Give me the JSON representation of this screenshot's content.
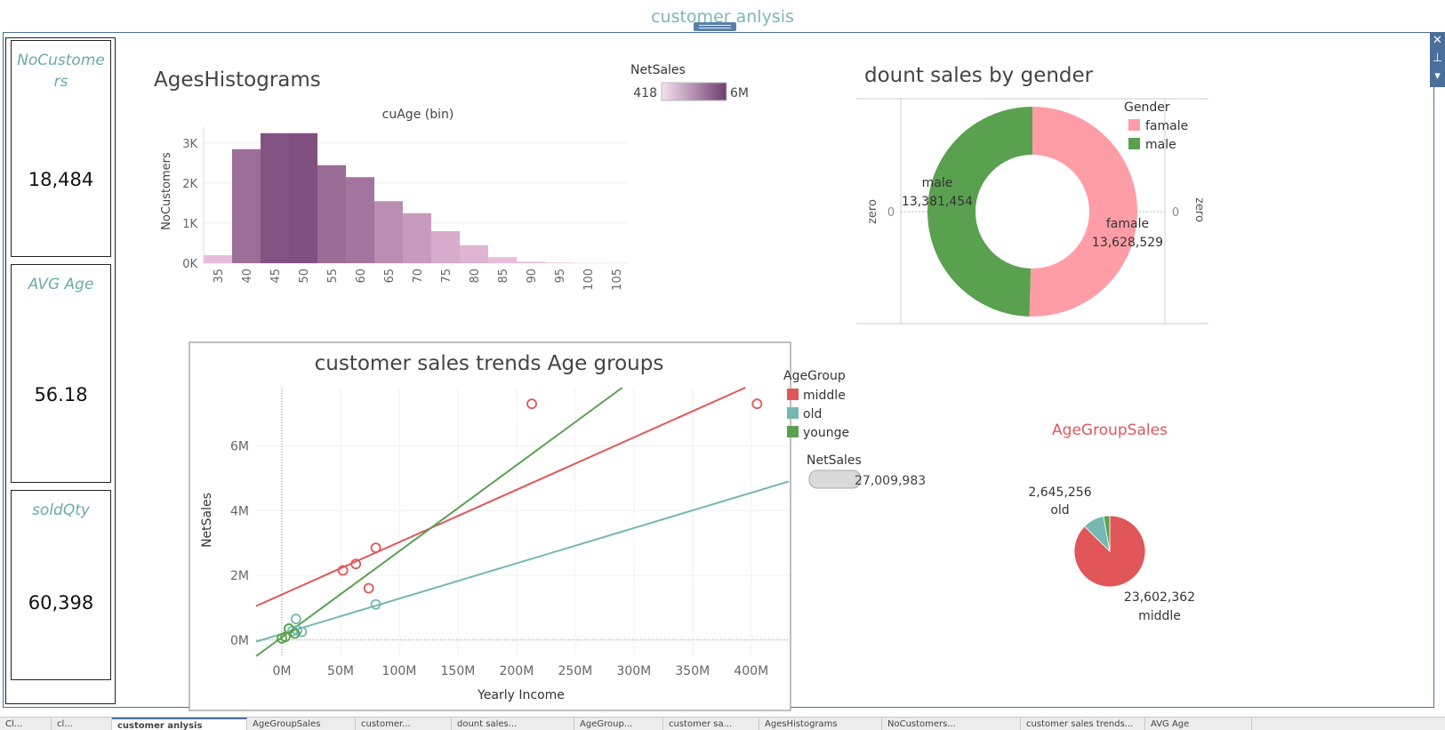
{
  "dashboard": {
    "title": "customer anlysis"
  },
  "kpis": [
    {
      "title": "NoCustomers",
      "value": "18,484"
    },
    {
      "title": "AVG Age",
      "value": "56.18"
    },
    {
      "title": "soldQty",
      "value": "60,398"
    }
  ],
  "colors": {
    "accent": "#4a6f9a",
    "kpi_title": "#6aaba7",
    "hist_dark": "#7a4a7a",
    "hist_light": "#eec3df",
    "female": "#ff9da6",
    "male": "#59a14f",
    "middle": "#e15759",
    "old": "#76b7b2",
    "younge": "#59a14f"
  },
  "histogram": {
    "title": "AgesHistograms",
    "legend_title": "NetSales",
    "legend_min": "418",
    "legend_max": "6M",
    "chart_data": {
      "type": "bar",
      "title": "cuAge (bin)",
      "ylabel": "NoCustomers",
      "categories": [
        "35",
        "40",
        "45",
        "50",
        "55",
        "60",
        "65",
        "70",
        "75",
        "80",
        "85",
        "90",
        "95",
        "100",
        "105"
      ],
      "values": [
        200,
        2850,
        3250,
        3250,
        2450,
        2150,
        1550,
        1250,
        800,
        450,
        150,
        40,
        15,
        5,
        2
      ],
      "color_values": [
        0.05,
        0.7,
        0.92,
        0.95,
        0.72,
        0.65,
        0.45,
        0.33,
        0.2,
        0.12,
        0.05,
        0.02,
        0.01,
        0.0,
        0.0
      ],
      "yticks": [
        "0K",
        "1K",
        "2K",
        "3K"
      ],
      "ylim": [
        0,
        3400
      ],
      "grid": true
    }
  },
  "donut": {
    "title": "dount sales by gender",
    "legend_title": "Gender",
    "axis_label": "zero",
    "axis_zero": "0",
    "chart_data": {
      "type": "pie",
      "labels": [
        "famale",
        "male"
      ],
      "values": [
        13628529,
        13381454
      ],
      "value_labels": [
        "13,628,529",
        "13,381,454"
      ]
    }
  },
  "scatter": {
    "title": "customer sales trends Age groups",
    "legend_title": "AgeGroup",
    "size_legend_title": "NetSales",
    "size_legend_value": "27,009,983",
    "chart_data": {
      "type": "scatter",
      "xlabel": "Yearly Income",
      "ylabel": "NetSales",
      "xticks": [
        "0M",
        "50M",
        "100M",
        "150M",
        "200M",
        "250M",
        "300M",
        "350M",
        "400M"
      ],
      "yticks": [
        "0M",
        "2M",
        "4M",
        "6M"
      ],
      "xlim": [
        -22,
        432
      ],
      "ylim": [
        -0.5,
        7.8
      ],
      "series": [
        {
          "name": "middle",
          "points": [
            [
              52,
              2.15
            ],
            [
              63,
              2.35
            ],
            [
              74,
              1.6
            ],
            [
              80,
              2.85
            ],
            [
              213,
              7.3
            ],
            [
              405,
              7.3
            ]
          ],
          "trend": [
            [
              -22,
              1.05
            ],
            [
              395,
              7.8
            ]
          ]
        },
        {
          "name": "old",
          "points": [
            [
              12,
              0.65
            ],
            [
              80,
              1.1
            ],
            [
              9,
              0.28
            ],
            [
              13,
              0.3
            ],
            [
              17,
              0.25
            ],
            [
              6,
              0.35
            ]
          ],
          "trend": [
            [
              -22,
              -0.05
            ],
            [
              432,
              4.9
            ]
          ]
        },
        {
          "name": "younge",
          "points": [
            [
              0,
              0.05
            ],
            [
              6,
              0.35
            ],
            [
              11,
              0.2
            ],
            [
              3,
              0.1
            ]
          ],
          "trend": [
            [
              -22,
              -0.5
            ],
            [
              290,
              7.8
            ]
          ]
        }
      ]
    }
  },
  "agegroup_pie": {
    "title": "AgeGroupSales",
    "chart_data": {
      "type": "pie",
      "labels": [
        "middle",
        "old",
        "younge"
      ],
      "values": [
        23602362,
        2645256,
        762365
      ],
      "value_labels": [
        "23,602,362",
        "2,645,256",
        ""
      ]
    }
  },
  "tabs": [
    "Cl...",
    "cl...",
    "customer anlysis",
    "AgeGroupSales",
    "customer...",
    "dount sales...",
    "AgeGroup...",
    "customer sa...",
    "AgesHistograms",
    "NoCustomers...",
    "customer sales trends...",
    "AVG Age"
  ]
}
